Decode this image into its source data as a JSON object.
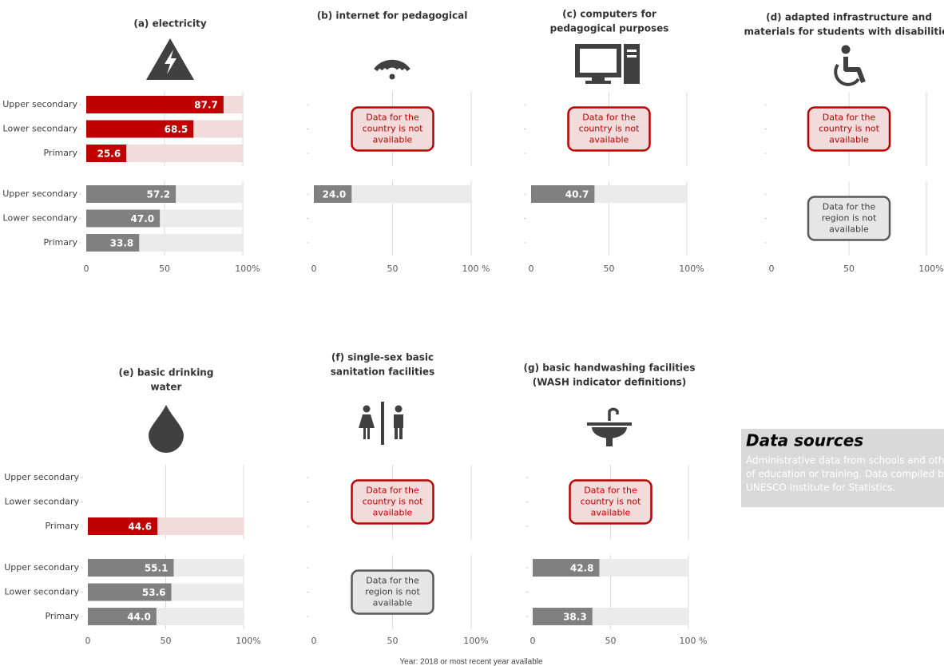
{
  "chart_data": [
    {
      "type": "bar",
      "title": [
        "(a) electricity"
      ],
      "categories": [
        "Upper secondary",
        "Lower secondary",
        "Primary"
      ],
      "country": {
        "color": "#c00000",
        "background": "#f2dcdb",
        "values": [
          87.7,
          68.5,
          25.6
        ],
        "value_labels": [
          "87.7",
          "68.5",
          "25.6"
        ]
      },
      "region": {
        "color": "#808080",
        "background": "#ebebeb",
        "values": [
          57.2,
          47.0,
          33.8
        ],
        "value_labels": [
          "57.2",
          "47.0",
          "33.8"
        ]
      },
      "xlim": [
        0,
        100
      ],
      "xticks": [
        0,
        50,
        {
          "value": 100,
          "label": "100%"
        }
      ],
      "grid": true
    },
    {
      "type": "bar",
      "title": [
        "(b) internet for pedagogical"
      ],
      "country": {
        "color": "#c00000",
        "background": "#f2dcdb",
        "values": [
          null,
          null,
          null
        ],
        "note": [
          "Data for the",
          "country is not",
          "available"
        ]
      },
      "region": {
        "color": "#808080",
        "background": "#ebebeb",
        "values": [
          24.0,
          null,
          null
        ],
        "value_labels": [
          "24.0",
          null,
          null
        ]
      },
      "xlim": [
        0,
        100
      ],
      "xticks": [
        0,
        50,
        {
          "value": 100,
          "label": "100 %"
        }
      ],
      "grid": true
    },
    {
      "type": "bar",
      "title": [
        "(c) computers for",
        "pedagogical purposes"
      ],
      "country": {
        "color": "#c00000",
        "background": "#f2dcdb",
        "values": [
          null,
          null,
          null
        ],
        "note": [
          "Data for the",
          "country is not",
          "available"
        ]
      },
      "region": {
        "color": "#808080",
        "background": "#ebebeb",
        "values": [
          40.7,
          null,
          null
        ],
        "value_labels": [
          "40.7",
          null,
          null
        ]
      },
      "xlim": [
        0,
        100
      ],
      "xticks": [
        0,
        50,
        {
          "value": 100,
          "label": "100%"
        }
      ],
      "grid": true
    },
    {
      "type": "bar",
      "title": [
        "(d) adapted infrastructure and",
        "materials for students with disabilities"
      ],
      "country": {
        "color": "#c00000",
        "background": "#f2dcdb",
        "values": [
          null,
          null,
          null
        ],
        "note": [
          "Data for the",
          "country is not",
          "available"
        ]
      },
      "region": {
        "color": "#808080",
        "background": "#ebebeb",
        "values": [
          null,
          null,
          null
        ],
        "note": [
          "Data for the",
          "region is not",
          "available"
        ]
      },
      "xlim": [
        0,
        100
      ],
      "xticks": [
        0,
        50,
        {
          "value": 100,
          "label": "100%"
        }
      ],
      "grid": true
    },
    {
      "type": "bar",
      "title": [
        "(e) basic drinking",
        "water"
      ],
      "categories": [
        "Upper secondary",
        "Lower secondary",
        "Primary"
      ],
      "country": {
        "color": "#c00000",
        "background": "#f2dcdb",
        "values": [
          null,
          null,
          44.6
        ],
        "value_labels": [
          null,
          null,
          "44.6"
        ]
      },
      "region": {
        "color": "#808080",
        "background": "#ebebeb",
        "values": [
          55.1,
          53.6,
          44.0
        ],
        "value_labels": [
          "55.1",
          "53.6",
          "44.0"
        ]
      },
      "xlim": [
        0,
        100
      ],
      "xticks": [
        0,
        50,
        {
          "value": 100,
          "label": "100%"
        }
      ],
      "grid": true
    },
    {
      "type": "bar",
      "title": [
        "(f) single-sex basic",
        "sanitation facilities"
      ],
      "country": {
        "color": "#c00000",
        "background": "#f2dcdb",
        "values": [
          null,
          null,
          null
        ],
        "note": [
          "Data for the",
          "country is not",
          "available"
        ]
      },
      "region": {
        "color": "#808080",
        "background": "#ebebeb",
        "values": [
          null,
          null,
          null
        ],
        "note": [
          "Data for the",
          "region is not",
          "available"
        ]
      },
      "xlim": [
        0,
        100
      ],
      "xticks": [
        0,
        50,
        {
          "value": 100,
          "label": "100%"
        }
      ],
      "grid": true
    },
    {
      "type": "bar",
      "title": [
        "(g) basic handwashing facilities",
        "(WASH indicator definitions)"
      ],
      "country": {
        "color": "#c00000",
        "background": "#f2dcdb",
        "values": [
          null,
          null,
          null
        ],
        "note": [
          "Data for the",
          "country is not",
          "available"
        ]
      },
      "region": {
        "color": "#808080",
        "background": "#ebebeb",
        "values": [
          42.8,
          null,
          38.3
        ],
        "value_labels": [
          "42.8",
          null,
          "38.3"
        ]
      },
      "xlim": [
        0,
        100
      ],
      "xticks": [
        0,
        50,
        {
          "value": 100,
          "label": "100 %"
        }
      ],
      "grid": true
    }
  ],
  "data_sources": {
    "title": "Data sources",
    "lines": [
      "Administrative data from schools and oth",
      "of education or training. Data compiled by",
      "UNESCO Institute for Statistics."
    ]
  },
  "footer": "Year: 2018 or most recent year available"
}
